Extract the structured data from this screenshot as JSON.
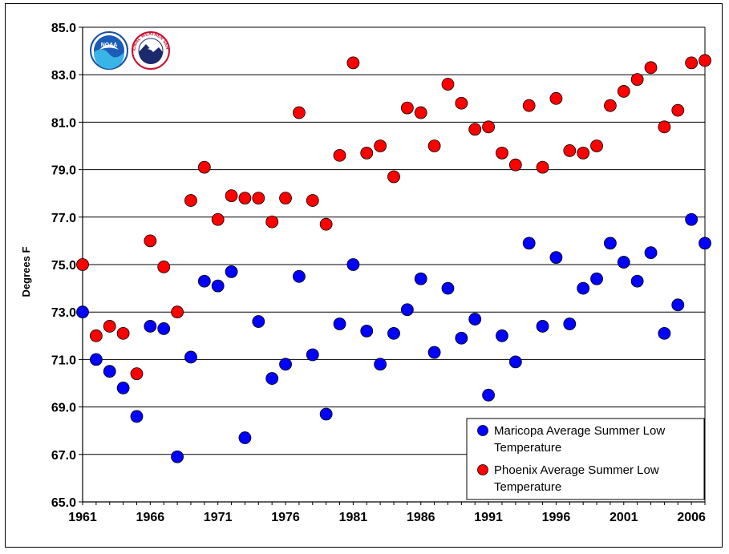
{
  "chart_data": {
    "type": "scatter",
    "title": "",
    "xlabel": "",
    "ylabel": "Degrees F",
    "xlim": [
      1961,
      2007
    ],
    "ylim": [
      65.0,
      85.0
    ],
    "yticks": [
      "65.0",
      "67.0",
      "69.0",
      "71.0",
      "73.0",
      "75.0",
      "77.0",
      "79.0",
      "81.0",
      "83.0",
      "85.0"
    ],
    "xticks": [
      "1961",
      "1966",
      "1971",
      "1976",
      "1981",
      "1986",
      "1991",
      "1996",
      "2001",
      "2006"
    ],
    "grid": "horizontal",
    "legend_position": "bottom-right",
    "series": [
      {
        "name": "Maricopa Average Summer Low Temperature",
        "legend_line1": "Maricopa Average Summer Low",
        "legend_line2": "Temperature",
        "color": "#0000ff",
        "x": [
          1961,
          1962,
          1963,
          1964,
          1965,
          1966,
          1967,
          1968,
          1969,
          1970,
          1971,
          1972,
          1973,
          1974,
          1975,
          1976,
          1977,
          1978,
          1979,
          1980,
          1981,
          1982,
          1983,
          1984,
          1985,
          1986,
          1987,
          1988,
          1989,
          1990,
          1991,
          1992,
          1993,
          1994,
          1995,
          1996,
          1997,
          1998,
          1999,
          2000,
          2001,
          2002,
          2003,
          2004,
          2005,
          2006,
          2007
        ],
        "y": [
          73.0,
          71.0,
          70.5,
          69.8,
          68.6,
          72.4,
          72.3,
          66.9,
          71.1,
          74.3,
          74.1,
          74.7,
          67.7,
          72.6,
          70.2,
          70.8,
          74.5,
          71.2,
          68.7,
          72.5,
          75.0,
          72.2,
          70.8,
          72.1,
          73.1,
          74.4,
          71.3,
          74.0,
          71.9,
          72.7,
          69.5,
          72.0,
          70.9,
          75.9,
          72.4,
          75.3,
          72.5,
          74.0,
          74.4,
          75.9,
          75.1,
          74.3,
          75.5,
          72.1,
          73.3,
          76.9,
          75.9
        ]
      },
      {
        "name": "Phoenix Average Summer Low Temperature",
        "legend_line1": "Phoenix Average Summer Low",
        "legend_line2": "Temperature",
        "color": "#ff0000",
        "x": [
          1961,
          1962,
          1963,
          1964,
          1965,
          1966,
          1967,
          1968,
          1969,
          1970,
          1971,
          1972,
          1973,
          1974,
          1975,
          1976,
          1977,
          1978,
          1979,
          1980,
          1981,
          1982,
          1983,
          1984,
          1985,
          1986,
          1987,
          1988,
          1989,
          1990,
          1991,
          1992,
          1993,
          1994,
          1995,
          1996,
          1997,
          1998,
          1999,
          2000,
          2001,
          2002,
          2003,
          2004,
          2005,
          2006,
          2007
        ],
        "y": [
          75.0,
          72.0,
          72.4,
          72.1,
          70.4,
          76.0,
          74.9,
          73.0,
          77.7,
          79.1,
          76.9,
          77.9,
          77.8,
          77.8,
          76.8,
          77.8,
          81.4,
          77.7,
          76.7,
          79.6,
          83.5,
          79.7,
          80.0,
          78.7,
          81.6,
          81.4,
          80.0,
          82.6,
          81.8,
          80.7,
          80.8,
          79.7,
          79.2,
          81.7,
          79.1,
          82.0,
          79.8,
          79.7,
          80.0,
          81.7,
          82.3,
          82.8,
          83.3,
          80.8,
          81.5,
          83.5,
          83.6
        ]
      }
    ]
  },
  "logos": {
    "noaa_text": "NOAA",
    "nws_text": "NATIONAL WEATHER SERVICE"
  }
}
